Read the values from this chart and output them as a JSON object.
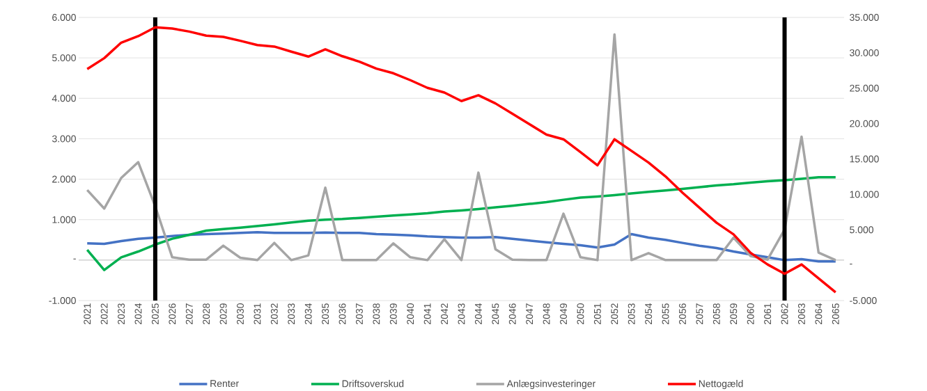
{
  "chart_data": {
    "type": "line",
    "categories": [
      "2021",
      "2022",
      "2023",
      "2024",
      "2025",
      "2026",
      "2027",
      "2028",
      "2029",
      "2030",
      "2031",
      "2032",
      "2033",
      "2034",
      "2035",
      "2036",
      "2037",
      "2038",
      "2039",
      "2040",
      "2041",
      "2042",
      "2043",
      "2044",
      "2045",
      "2046",
      "2047",
      "2048",
      "2049",
      "2050",
      "2051",
      "2052",
      "2053",
      "2054",
      "2055",
      "2056",
      "2057",
      "2058",
      "2059",
      "2060",
      "2061",
      "2062",
      "2063",
      "2064",
      "2065"
    ],
    "series": [
      {
        "name": "Renter",
        "color": "#4472c4",
        "values": [
          413,
          401,
          470,
          528,
          556,
          597,
          625,
          642,
          654,
          671,
          688,
          671,
          671,
          671,
          683,
          671,
          671,
          642,
          631,
          614,
          585,
          568,
          556,
          556,
          568,
          528,
          482,
          442,
          401,
          367,
          310,
          384,
          642,
          556,
          499,
          425,
          356,
          298,
          212,
          138,
          69,
          0,
          22,
          -34,
          -34
        ]
      },
      {
        "name": "Driftsoverskud",
        "color": "#00b050",
        "values": [
          253,
          -246,
          69,
          212,
          384,
          528,
          625,
          728,
          769,
          803,
          843,
          883,
          929,
          975,
          998,
          1015,
          1044,
          1072,
          1101,
          1130,
          1158,
          1200,
          1227,
          1262,
          1303,
          1342,
          1389,
          1434,
          1492,
          1544,
          1571,
          1606,
          1647,
          1687,
          1721,
          1761,
          1802,
          1847,
          1876,
          1916,
          1950,
          1974,
          2009,
          2048,
          2048
        ]
      },
      {
        "name": "Anlægsinvesteringer",
        "color": "#a5a5a5",
        "values": [
          1733,
          1274,
          2031,
          2422,
          1330,
          69,
          11,
          11,
          356,
          57,
          0,
          425,
          0,
          115,
          1790,
          0,
          0,
          0,
          413,
          69,
          0,
          516,
          0,
          2163,
          270,
          11,
          0,
          0,
          1148,
          69,
          0,
          5580,
          0,
          172,
          0,
          0,
          0,
          0,
          556,
          98,
          11,
          757,
          3052,
          184,
          0
        ]
      },
      {
        "name": "Nettogæld",
        "color": "#ff0000",
        "axis": "y2",
        "values": [
          27700,
          29240,
          31430,
          32350,
          33600,
          33430,
          33000,
          32420,
          32250,
          31700,
          31100,
          30880,
          30160,
          29470,
          30490,
          29520,
          28750,
          27770,
          27110,
          26130,
          25050,
          24390,
          23180,
          24000,
          22850,
          21380,
          19910,
          18440,
          17780,
          15980,
          14100,
          17780,
          16140,
          14500,
          12540,
          10240,
          8110,
          5990,
          4350,
          1740,
          100,
          -1210,
          100,
          -1870,
          -3830
        ]
      }
    ],
    "ylim": [
      -1000,
      6000
    ],
    "yticks": [
      {
        "value": -1000,
        "label": "-1.000"
      },
      {
        "value": 0,
        "label": "-"
      },
      {
        "value": 1000,
        "label": "1.000"
      },
      {
        "value": 2000,
        "label": "2.000"
      },
      {
        "value": 3000,
        "label": "3.000"
      },
      {
        "value": 4000,
        "label": "4.000"
      },
      {
        "value": 5000,
        "label": "5.000"
      },
      {
        "value": 6000,
        "label": "6.000"
      }
    ],
    "y2lim": [
      -5000,
      35000
    ],
    "y2ticks": [
      {
        "value": -5000,
        "label": "-5.000"
      },
      {
        "value": 0,
        "label": "-"
      },
      {
        "value": 5000,
        "label": "5.000"
      },
      {
        "value": 10000,
        "label": "10.000"
      },
      {
        "value": 15000,
        "label": "15.000"
      },
      {
        "value": 20000,
        "label": "20.000"
      },
      {
        "value": 25000,
        "label": "25.000"
      },
      {
        "value": 30000,
        "label": "30.000"
      },
      {
        "value": 35000,
        "label": "35.000"
      }
    ],
    "ref_lines": [
      {
        "axis": "x",
        "value": "2025",
        "color": "#000000"
      },
      {
        "axis": "x",
        "value": "2062",
        "color": "#000000"
      }
    ],
    "grid": "y",
    "legend": "bottom",
    "marker": "none",
    "line_style": "solid"
  }
}
